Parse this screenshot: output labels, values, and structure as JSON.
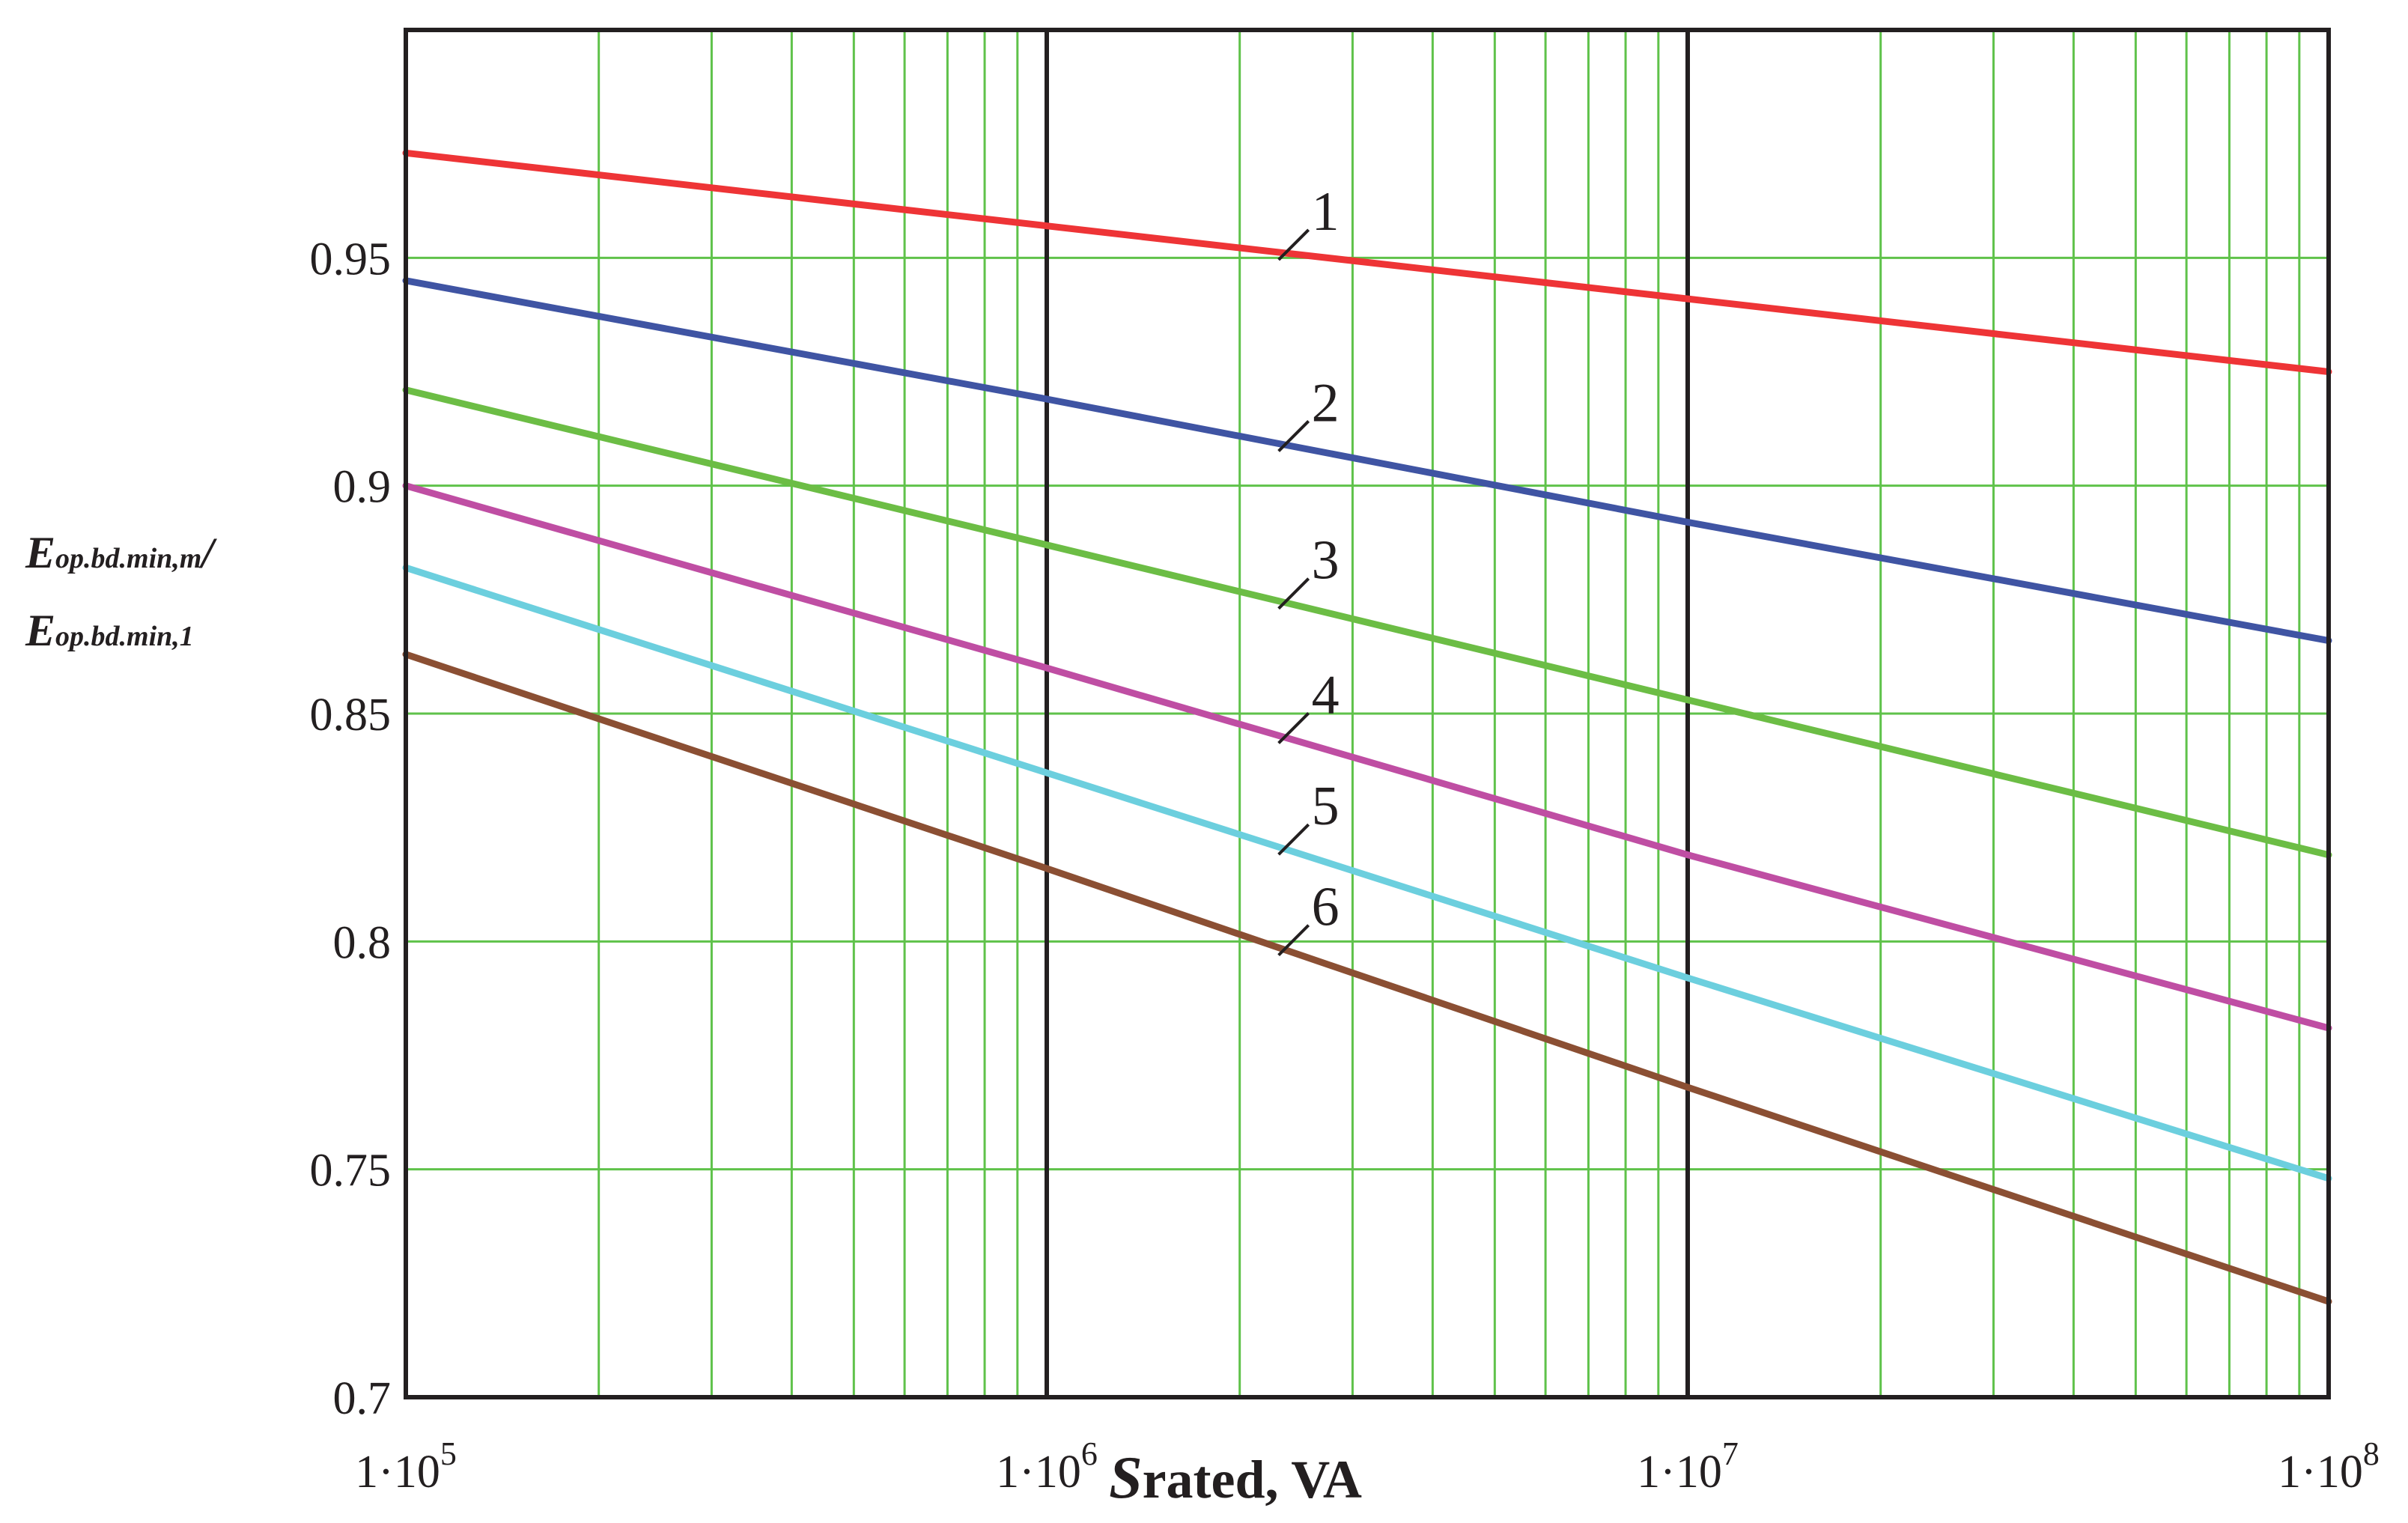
{
  "chart_data": {
    "type": "line",
    "x_scale": "log",
    "xlim": [
      100000,
      100000000
    ],
    "ylim": [
      0.7,
      1.0
    ],
    "grid": true,
    "xlabel": {
      "main": "S",
      "rest": "rated, VA"
    },
    "ylabel": {
      "line1_main": "E",
      "line1_sub": "op.bd.min,m",
      "line1_tail": "/",
      "line2_main": "E",
      "line2_sub": "op.bd.min,1"
    },
    "x_ticks": [
      {
        "value": 100000,
        "base": "1·10",
        "exp": "5"
      },
      {
        "value": 1000000,
        "base": "1·10",
        "exp": "6"
      },
      {
        "value": 10000000,
        "base": "1·10",
        "exp": "7"
      },
      {
        "value": 100000000,
        "base": "1·10",
        "exp": "8"
      }
    ],
    "y_ticks": [
      {
        "value": 0.7,
        "label": "0.7"
      },
      {
        "value": 0.75,
        "label": "0.75"
      },
      {
        "value": 0.8,
        "label": "0.8"
      },
      {
        "value": 0.85,
        "label": "0.85"
      },
      {
        "value": 0.9,
        "label": "0.9"
      },
      {
        "value": 0.95,
        "label": "0.95"
      }
    ],
    "colors": {
      "grid": "#5fc24a",
      "decade": "#231f20",
      "frame": "#231f20"
    },
    "series": [
      {
        "name": "1",
        "color": "#ee3436",
        "x": [
          100000,
          1000000,
          10000000,
          100000000
        ],
        "values": [
          0.973,
          0.957,
          0.941,
          0.925
        ],
        "label_x": 2300000
      },
      {
        "name": "2",
        "color": "#3f54a3",
        "x": [
          100000,
          1000000,
          10000000,
          100000000
        ],
        "values": [
          0.945,
          0.919,
          0.892,
          0.866
        ],
        "label_x": 2300000
      },
      {
        "name": "3",
        "color": "#6cbd45",
        "x": [
          100000,
          1000000,
          10000000,
          100000000
        ],
        "values": [
          0.921,
          0.887,
          0.853,
          0.819
        ],
        "label_x": 2300000
      },
      {
        "name": "4",
        "color": "#bf4ea3",
        "x": [
          100000,
          1000000,
          10000000,
          100000000
        ],
        "values": [
          0.9,
          0.86,
          0.819,
          0.781
        ],
        "label_x": 2300000
      },
      {
        "name": "5",
        "color": "#6ccfde",
        "x": [
          100000,
          1000000,
          10000000,
          100000000
        ],
        "values": [
          0.882,
          0.837,
          0.792,
          0.748
        ],
        "label_x": 2300000
      },
      {
        "name": "6",
        "color": "#8b4f33",
        "x": [
          100000,
          1000000,
          10000000,
          100000000
        ],
        "values": [
          0.863,
          0.816,
          0.768,
          0.721
        ],
        "label_x": 2300000
      }
    ]
  }
}
